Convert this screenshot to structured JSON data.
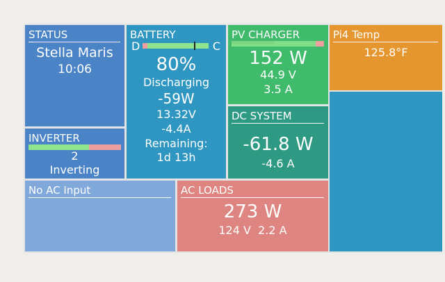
{
  "tiles": {
    "status": {
      "title": "STATUS",
      "name": "Stella Maris",
      "time": "10:06"
    },
    "inverter": {
      "title": "INVERTER",
      "value": "2",
      "state": "Inverting"
    },
    "battery": {
      "title": "BATTERY",
      "left_label": "D",
      "right_label": "C",
      "soc": "80%",
      "state": "Discharging",
      "power": "-59W",
      "voltage": "13.32V",
      "current": "-4.4A",
      "remaining_label": "Remaining:",
      "remaining": "1d 13h"
    },
    "pv_charger": {
      "title": "PV CHARGER",
      "power": "152 W",
      "voltage": "44.9 V",
      "current": "3.5 A"
    },
    "dc_system": {
      "title": "DC SYSTEM",
      "power": "-61.8 W",
      "current": "-4.6 A"
    },
    "temperature": {
      "title": "Pi4 Temp",
      "value": "125.8°F"
    },
    "ac_input": {
      "title": "No AC Input"
    },
    "ac_loads": {
      "title": "AC LOADS",
      "power": "273 W",
      "voltage": "124 V",
      "current": "2.2 A"
    }
  }
}
